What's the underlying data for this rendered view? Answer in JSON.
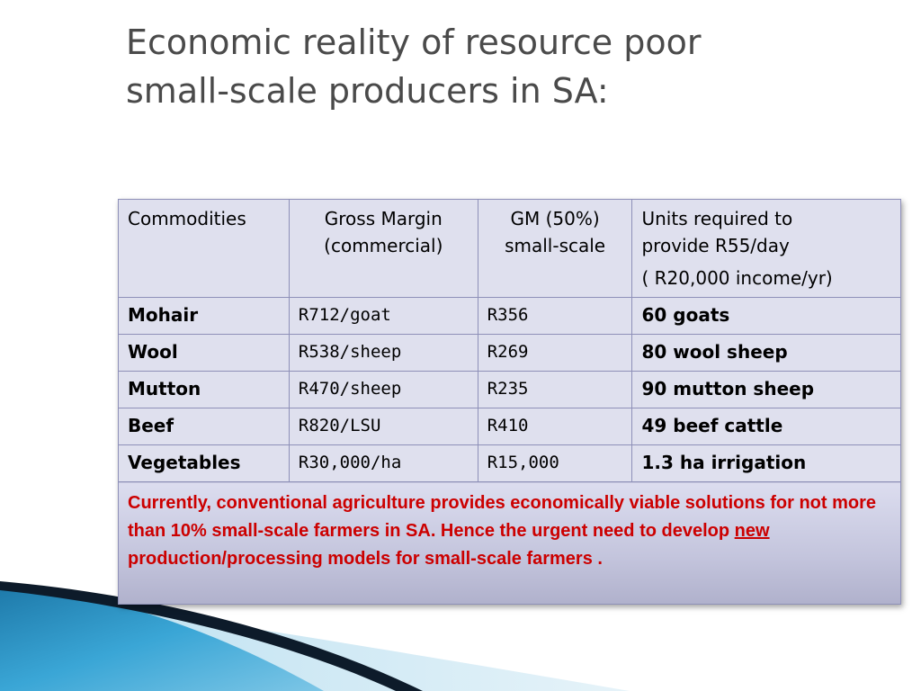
{
  "slide": {
    "title_line1": "Economic reality of resource poor",
    "title_line2": "small-scale producers in SA:"
  },
  "table": {
    "headers": {
      "commodities": "Commodities",
      "gross_margin_l1": "Gross Margin",
      "gross_margin_l2": "(commercial)",
      "gm50_l1": "GM (50%)",
      "gm50_l2": "small-scale",
      "units_l1": "Units required to",
      "units_l2": "provide R55/day",
      "units_l3": "( R20,000 income/yr)"
    },
    "rows": [
      {
        "commodity": "Mohair",
        "gross_margin": "R712/goat",
        "gm50": "R356",
        "units": "60 goats"
      },
      {
        "commodity": "Wool",
        "gross_margin": "R538/sheep",
        "gm50": "R269",
        "units": "80 wool sheep"
      },
      {
        "commodity": "Mutton",
        "gross_margin": "R470/sheep",
        "gm50": "R235",
        "units": "90 mutton sheep"
      },
      {
        "commodity": "Beef",
        "gross_margin": "R820/LSU",
        "gm50": "R410",
        "units": "49 beef cattle"
      },
      {
        "commodity": "Vegetables",
        "gross_margin": "R30,000/ha",
        "gm50": "R15,000",
        "units": "1.3 ha irrigation"
      }
    ],
    "note": {
      "part1": "Currently, conventional agriculture provides economically viable solutions for not more than 10% small-scale farmers in SA.  Hence the urgent need to develop ",
      "underlined": "new",
      "part2": " production/processing models for small-scale farmers ."
    }
  },
  "colors": {
    "title": "#4a4a4a",
    "cell_bg": "#dfe0ee",
    "border": "#8e90b8",
    "note_text": "#cc0000",
    "swoosh_blue": "#2a8fc0",
    "swoosh_dark": "#0d1b2a"
  }
}
